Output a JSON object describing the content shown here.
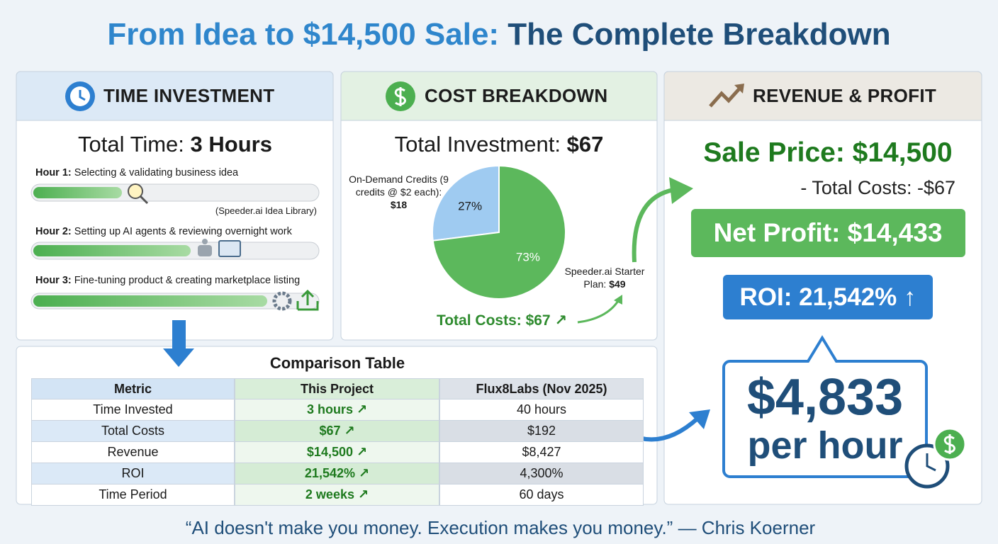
{
  "title": {
    "part1": "From Idea to $14,500 Sale:",
    "part2": "The Complete Breakdown"
  },
  "time": {
    "header": "TIME INVESTMENT",
    "total_label": "Total Time:",
    "total_value": "3 Hours",
    "hours": [
      {
        "label": "Hour 1:",
        "text": "Selecting & validating business idea",
        "note": "(Speeder.ai Idea Library)"
      },
      {
        "label": "Hour 2:",
        "text": "Setting up AI agents & reviewing overnight work"
      },
      {
        "label": "Hour 3:",
        "text": "Fine-tuning product & creating marketplace listing"
      }
    ]
  },
  "cost": {
    "header": "COST BREAKDOWN",
    "total_label": "Total Investment:",
    "total_value": "$67",
    "pie": {
      "type": "pie",
      "values": [
        27,
        73
      ],
      "value_labels": [
        "27%",
        "73%"
      ],
      "colors": [
        "#9fcbf1",
        "#5cb85c"
      ],
      "slice_labels": [
        {
          "text": "On-Demand Credits (9 credits @ $2 each):",
          "amount": "$18"
        },
        {
          "text": "Speeder.ai Starter Plan:",
          "amount": "$49"
        }
      ]
    },
    "total_costs": "Total Costs: $67 ↗"
  },
  "revenue": {
    "header": "REVENUE & PROFIT",
    "sale_price": "Sale Price: $14,500",
    "total_costs": "- Total Costs: -$67",
    "net_profit": "Net Profit: $14,433",
    "roi": "ROI: 21,542% ↑",
    "per_hour_value": "$4,833",
    "per_hour_unit": "per hour"
  },
  "table": {
    "title": "Comparison Table",
    "columns": [
      "Metric",
      "This Project",
      "Flux8Labs (Nov 2025)"
    ],
    "rows": [
      [
        "Time Invested",
        "3 hours ↗",
        "40 hours"
      ],
      [
        "Total Costs",
        "$67 ↗",
        "$192"
      ],
      [
        "Revenue",
        "$14,500 ↗",
        "$8,427"
      ],
      [
        "ROI",
        "21,542% ↗",
        "4,300%"
      ],
      [
        "Time Period",
        "2 weeks ↗",
        "60 days"
      ]
    ]
  },
  "quote": "“AI doesn't make you money. Execution makes you money.” — Chris Koerner"
}
